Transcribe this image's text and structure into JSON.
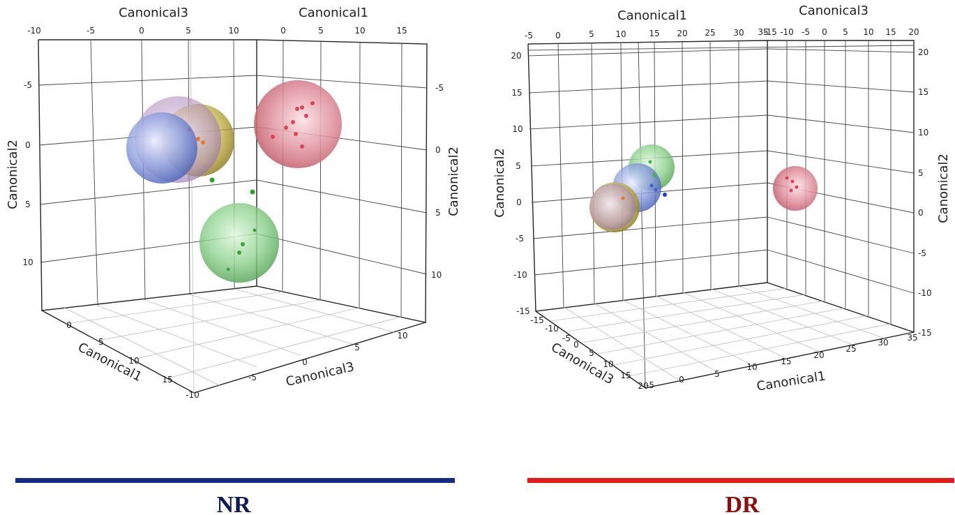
{
  "panels": [
    {
      "caption": "NR",
      "caption_color": "#0e1a5c",
      "bar_color": "#142b8c",
      "axes": {
        "canonical1": {
          "label": "Canonical1",
          "ticks": [
            "0",
            "5",
            "10",
            "15"
          ]
        },
        "canonical2": {
          "label": "Canonical2",
          "ticks": [
            "-5",
            "0",
            "5",
            "10"
          ]
        },
        "canonical3": {
          "label": "Canonical3",
          "ticks": [
            "-10",
            "-5",
            "0",
            "5",
            "10"
          ]
        }
      }
    },
    {
      "caption": "DR",
      "caption_color": "#8b0f0f",
      "bar_color": "#f01414",
      "axes": {
        "canonical1": {
          "label": "Canonical1",
          "ticks": [
            "-5",
            "0",
            "5",
            "10",
            "15",
            "20",
            "25",
            "30",
            "35"
          ]
        },
        "canonical2": {
          "label": "Canonical2",
          "ticks": [
            "-15",
            "-10",
            "-5",
            "0",
            "5",
            "10",
            "15",
            "20"
          ]
        },
        "canonical3": {
          "label": "Canonical3",
          "ticks": [
            "-15",
            "-10",
            "-5",
            "0",
            "5",
            "10",
            "15",
            "20"
          ]
        }
      }
    }
  ],
  "chart_data": [
    {
      "type": "scatter",
      "subtype": "3d-canonical-plot",
      "panel": "NR",
      "xlabel": "Canonical1",
      "ylabel": "Canonical2",
      "zlabel": "Canonical3",
      "xlim": [
        -3,
        17
      ],
      "ylim": [
        -9,
        13
      ],
      "zlim": [
        -10,
        12
      ],
      "grid": true,
      "groups": [
        {
          "color": "#6f88d6",
          "sphere": true
        },
        {
          "color": "#c9b64a",
          "sphere": true
        },
        {
          "color": "#e07a8c",
          "sphere": true
        },
        {
          "color": "#5fbf5f",
          "sphere": true
        }
      ]
    },
    {
      "type": "scatter",
      "subtype": "3d-canonical-plot",
      "panel": "DR",
      "xlabel": "Canonical1",
      "ylabel": "Canonical2",
      "zlabel": "Canonical3",
      "xlim": [
        -5,
        35
      ],
      "ylim": [
        -15,
        20
      ],
      "zlim": [
        -15,
        20
      ],
      "grid": true,
      "groups": [
        {
          "color": "#c9b64a",
          "sphere": true
        },
        {
          "color": "#6f88d6",
          "sphere": true
        },
        {
          "color": "#5fbf5f",
          "sphere": true
        },
        {
          "color": "#e07a8c",
          "sphere": true
        }
      ]
    }
  ]
}
